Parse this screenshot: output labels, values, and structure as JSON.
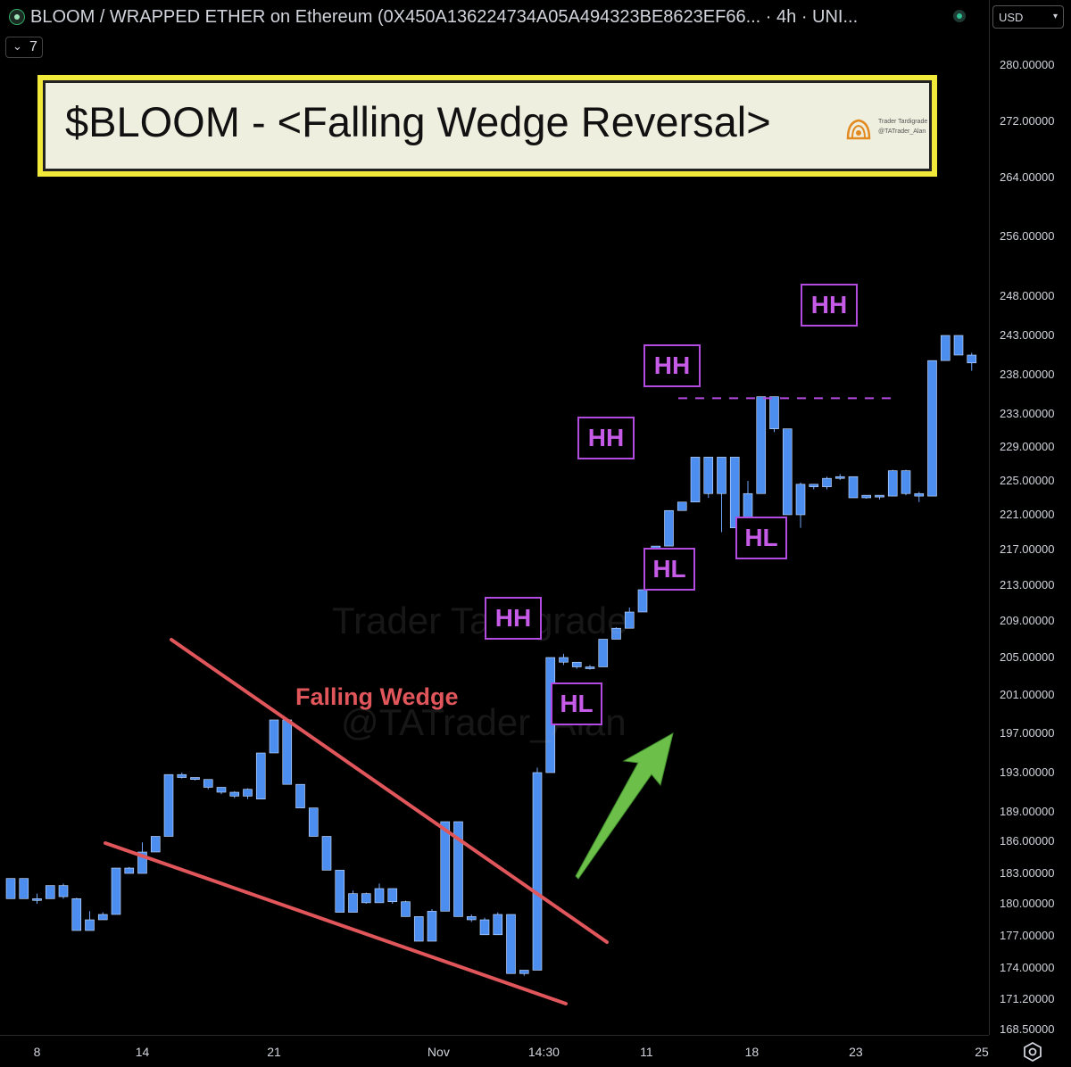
{
  "header": {
    "title": "BLOOM / WRAPPED ETHER on Ethereum (0X450A136224734A05A494323BE8623EF66... · 4h · UNI...",
    "indicator_count": "7",
    "currency": "USD",
    "status_color": "#2fbf8f"
  },
  "banner": {
    "text": "$BLOOM - <Falling Wedge Reversal>",
    "credit_line1": "Trader Tardigrade",
    "credit_line2": "@TATrader_Alan"
  },
  "watermark": {
    "line1": "Trader Tardigrade",
    "line2": "@TATrader_Alan"
  },
  "annotations": {
    "pattern_label": "Falling Wedge",
    "pattern_color": "#e0565b",
    "arrow_color": "#6cc04a",
    "label_color": "#b44be0",
    "swing_labels": [
      {
        "text": "HH",
        "bar": 40
      },
      {
        "text": "HL",
        "bar": 44
      },
      {
        "text": "HH",
        "bar": 46
      },
      {
        "text": "HL",
        "bar": 50
      },
      {
        "text": "HH",
        "bar": 51
      },
      {
        "text": "HL",
        "bar": 57
      },
      {
        "text": "HH",
        "bar": 62
      }
    ],
    "resistance_level": 235.0
  },
  "chart_data": {
    "type": "candlestick",
    "up_color": "#4c8ef0",
    "y_ticks": [
      "280.00000",
      "272.00000",
      "264.00000",
      "256.00000",
      "248.00000",
      "243.00000",
      "238.00000",
      "233.00000",
      "229.00000",
      "225.00000",
      "221.00000",
      "217.00000",
      "213.00000",
      "209.00000",
      "205.00000",
      "201.00000",
      "197.00000",
      "193.00000",
      "189.00000",
      "186.00000",
      "183.00000",
      "180.00000",
      "177.00000",
      "174.00000",
      "171.20000",
      "168.50000"
    ],
    "x_ticks": [
      {
        "label": "8",
        "bar": 2
      },
      {
        "label": "14",
        "bar": 10
      },
      {
        "label": "21",
        "bar": 20
      },
      {
        "label": "Nov",
        "bar": 32.5
      },
      {
        "label": "14:30",
        "bar": 40.5
      },
      {
        "label": "11",
        "bar": 48.3
      },
      {
        "label": "18",
        "bar": 56.3
      },
      {
        "label": "23",
        "bar": 64.2
      },
      {
        "label": "25",
        "bar": 73.8
      }
    ],
    "candles": [
      [
        182.5,
        182.5,
        180.5,
        180.5
      ],
      [
        182.5,
        182.5,
        180.5,
        180.5
      ],
      [
        180.5,
        181.0,
        180.0,
        180.5
      ],
      [
        180.5,
        181.8,
        180.5,
        181.8
      ],
      [
        181.8,
        182.0,
        180.5,
        180.7
      ],
      [
        180.5,
        180.6,
        177.5,
        177.5
      ],
      [
        177.5,
        179.3,
        177.5,
        178.5
      ],
      [
        178.5,
        179.2,
        178.5,
        179.0
      ],
      [
        179.0,
        183.5,
        179.0,
        183.5
      ],
      [
        183.5,
        183.6,
        183.0,
        183.0
      ],
      [
        183.0,
        185.9,
        183.0,
        185.0
      ],
      [
        185.0,
        186.5,
        185.0,
        186.5
      ],
      [
        186.5,
        192.8,
        186.5,
        192.8
      ],
      [
        192.8,
        193.0,
        192.4,
        192.5
      ],
      [
        192.5,
        192.5,
        192.2,
        192.3
      ],
      [
        192.3,
        192.3,
        191.3,
        191.5
      ],
      [
        191.5,
        191.5,
        190.8,
        191.0
      ],
      [
        191.0,
        191.1,
        190.4,
        190.6
      ],
      [
        190.6,
        191.4,
        190.3,
        191.3
      ],
      [
        190.3,
        195.0,
        190.3,
        195.0
      ],
      [
        195.0,
        198.4,
        195.0,
        198.4
      ],
      [
        198.4,
        198.4,
        191.8,
        191.8
      ],
      [
        191.8,
        191.8,
        189.4,
        189.4
      ],
      [
        189.4,
        189.4,
        186.5,
        186.5
      ],
      [
        186.5,
        186.5,
        183.3,
        183.3
      ],
      [
        183.3,
        183.3,
        179.2,
        179.2
      ],
      [
        179.2,
        181.3,
        179.2,
        181.0
      ],
      [
        181.0,
        181.1,
        180.0,
        180.1
      ],
      [
        180.1,
        182.0,
        180.1,
        181.5
      ],
      [
        181.5,
        181.5,
        180.0,
        180.2
      ],
      [
        180.2,
        180.3,
        178.8,
        178.8
      ],
      [
        178.8,
        178.8,
        176.5,
        176.5
      ],
      [
        176.5,
        179.5,
        176.5,
        179.3
      ],
      [
        179.3,
        188.0,
        179.3,
        188.0
      ],
      [
        188.0,
        188.0,
        178.8,
        178.8
      ],
      [
        178.8,
        179.0,
        178.3,
        178.5
      ],
      [
        178.5,
        178.7,
        177.1,
        177.1
      ],
      [
        177.1,
        179.2,
        177.1,
        179.0
      ],
      [
        179.0,
        179.0,
        173.5,
        173.5
      ],
      [
        173.5,
        173.8,
        173.3,
        173.8
      ],
      [
        173.8,
        193.5,
        173.8,
        193.0
      ],
      [
        193.0,
        205.0,
        193.0,
        205.0
      ],
      [
        205.0,
        205.4,
        204.2,
        204.5
      ],
      [
        204.5,
        204.5,
        203.8,
        204.0
      ],
      [
        204.0,
        204.2,
        203.7,
        204.0
      ],
      [
        204.0,
        207.0,
        204.0,
        207.0
      ],
      [
        207.0,
        208.3,
        207.0,
        208.2
      ],
      [
        208.2,
        210.5,
        208.2,
        210.0
      ],
      [
        210.0,
        212.5,
        210.0,
        212.5
      ],
      [
        212.5,
        217.4,
        212.5,
        217.4
      ],
      [
        217.4,
        221.5,
        217.4,
        221.5
      ],
      [
        221.5,
        222.5,
        221.5,
        222.5
      ],
      [
        222.5,
        227.8,
        222.5,
        227.8
      ],
      [
        227.8,
        227.8,
        223.0,
        223.5
      ],
      [
        223.5,
        227.8,
        219.0,
        227.8
      ],
      [
        227.8,
        227.8,
        219.5,
        219.5
      ],
      [
        219.5,
        225.0,
        219.5,
        223.5
      ],
      [
        223.5,
        235.2,
        223.5,
        235.2
      ],
      [
        235.2,
        235.2,
        230.8,
        231.2
      ],
      [
        231.2,
        231.2,
        221.0,
        221.0
      ],
      [
        221.0,
        224.8,
        219.5,
        224.6
      ],
      [
        224.6,
        224.6,
        224.0,
        224.3
      ],
      [
        224.3,
        225.5,
        224.0,
        225.3
      ],
      [
        225.3,
        225.8,
        225.1,
        225.5
      ],
      [
        225.5,
        225.5,
        223.0,
        223.0
      ],
      [
        223.0,
        223.2,
        222.9,
        223.3
      ],
      [
        223.3,
        223.3,
        222.8,
        223.2
      ],
      [
        223.2,
        226.3,
        223.2,
        226.2
      ],
      [
        226.2,
        226.3,
        223.3,
        223.5
      ],
      [
        223.5,
        223.7,
        222.5,
        223.2
      ],
      [
        223.2,
        239.8,
        223.2,
        239.8
      ],
      [
        239.8,
        243.0,
        239.8,
        243.0
      ],
      [
        243.0,
        243.0,
        240.5,
        240.5
      ],
      [
        240.5,
        240.8,
        238.5,
        239.5
      ]
    ]
  }
}
